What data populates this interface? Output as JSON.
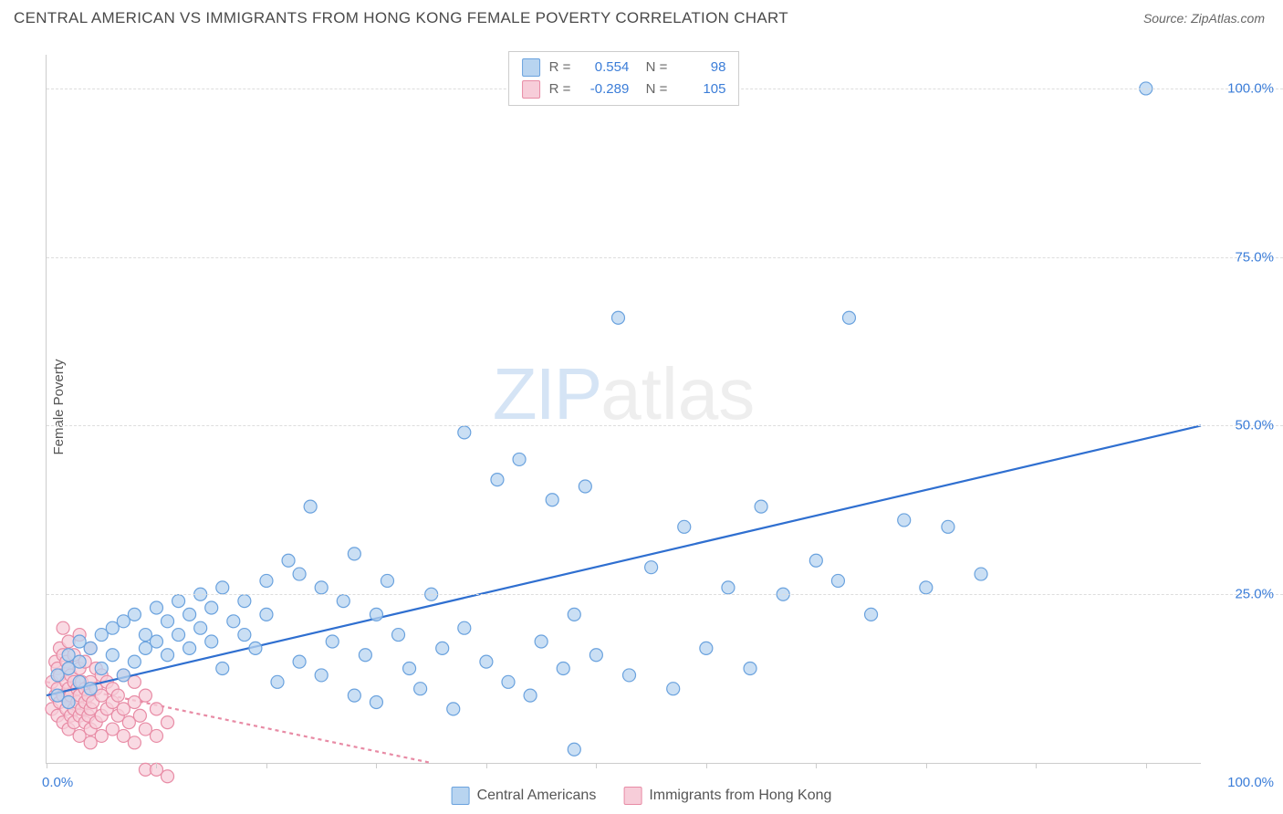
{
  "title": "CENTRAL AMERICAN VS IMMIGRANTS FROM HONG KONG FEMALE POVERTY CORRELATION CHART",
  "source": "Source: ZipAtlas.com",
  "ylabel": "Female Poverty",
  "watermark_zip": "ZIP",
  "watermark_atlas": "atlas",
  "chart": {
    "type": "scatter",
    "background_color": "#ffffff",
    "grid_color": "#dddddd",
    "axis_color": "#cccccc",
    "xlim": [
      0,
      105
    ],
    "ylim": [
      0,
      105
    ],
    "xticks": [
      0,
      10,
      20,
      30,
      40,
      50,
      60,
      70,
      80,
      90,
      100
    ],
    "yticks": [
      25,
      50,
      75,
      100
    ],
    "ytick_labels": [
      "25.0%",
      "50.0%",
      "75.0%",
      "100.0%"
    ],
    "x_axis_labels": {
      "min": "0.0%",
      "max": "100.0%"
    },
    "marker_radius": 7,
    "marker_stroke_width": 1.2,
    "trend_line_width": 2.2
  },
  "series": [
    {
      "name": "Central Americans",
      "fill_color": "#b8d4f0",
      "stroke_color": "#6aa2de",
      "line_color": "#2f6fd0",
      "line_dash": "none",
      "R": "0.554",
      "N": "98",
      "trend": {
        "x1": 0,
        "y1": 10,
        "x2": 105,
        "y2": 50
      },
      "points": [
        [
          1,
          10
        ],
        [
          1,
          13
        ],
        [
          2,
          9
        ],
        [
          2,
          14
        ],
        [
          2,
          16
        ],
        [
          3,
          12
        ],
        [
          3,
          15
        ],
        [
          3,
          18
        ],
        [
          4,
          11
        ],
        [
          4,
          17
        ],
        [
          5,
          14
        ],
        [
          5,
          19
        ],
        [
          6,
          16
        ],
        [
          6,
          20
        ],
        [
          7,
          13
        ],
        [
          7,
          21
        ],
        [
          8,
          15
        ],
        [
          8,
          22
        ],
        [
          9,
          17
        ],
        [
          9,
          19
        ],
        [
          10,
          18
        ],
        [
          10,
          23
        ],
        [
          11,
          16
        ],
        [
          11,
          21
        ],
        [
          12,
          19
        ],
        [
          12,
          24
        ],
        [
          13,
          17
        ],
        [
          13,
          22
        ],
        [
          14,
          20
        ],
        [
          14,
          25
        ],
        [
          15,
          18
        ],
        [
          15,
          23
        ],
        [
          16,
          14
        ],
        [
          16,
          26
        ],
        [
          17,
          21
        ],
        [
          18,
          19
        ],
        [
          18,
          24
        ],
        [
          19,
          17
        ],
        [
          20,
          22
        ],
        [
          20,
          27
        ],
        [
          21,
          12
        ],
        [
          22,
          30
        ],
        [
          23,
          15
        ],
        [
          23,
          28
        ],
        [
          24,
          38
        ],
        [
          25,
          13
        ],
        [
          25,
          26
        ],
        [
          26,
          18
        ],
        [
          27,
          24
        ],
        [
          28,
          10
        ],
        [
          28,
          31
        ],
        [
          29,
          16
        ],
        [
          30,
          9
        ],
        [
          30,
          22
        ],
        [
          31,
          27
        ],
        [
          32,
          19
        ],
        [
          33,
          14
        ],
        [
          34,
          11
        ],
        [
          35,
          25
        ],
        [
          36,
          17
        ],
        [
          37,
          8
        ],
        [
          38,
          49
        ],
        [
          38,
          20
        ],
        [
          40,
          15
        ],
        [
          41,
          42
        ],
        [
          42,
          12
        ],
        [
          43,
          45
        ],
        [
          44,
          10
        ],
        [
          45,
          18
        ],
        [
          46,
          39
        ],
        [
          47,
          14
        ],
        [
          48,
          2
        ],
        [
          48,
          22
        ],
        [
          49,
          41
        ],
        [
          50,
          16
        ],
        [
          52,
          66
        ],
        [
          53,
          13
        ],
        [
          55,
          29
        ],
        [
          57,
          11
        ],
        [
          58,
          35
        ],
        [
          60,
          17
        ],
        [
          62,
          26
        ],
        [
          64,
          14
        ],
        [
          65,
          38
        ],
        [
          67,
          25
        ],
        [
          70,
          30
        ],
        [
          72,
          27
        ],
        [
          73,
          66
        ],
        [
          75,
          22
        ],
        [
          78,
          36
        ],
        [
          80,
          26
        ],
        [
          82,
          35
        ],
        [
          85,
          28
        ],
        [
          100,
          100
        ]
      ]
    },
    {
      "name": "Immigrants from Hong Kong",
      "fill_color": "#f7cdd9",
      "stroke_color": "#e88ba5",
      "line_color": "#e88ba5",
      "line_dash": "4,4",
      "R": "-0.289",
      "N": "105",
      "trend": {
        "x1": 0,
        "y1": 12,
        "x2": 35,
        "y2": 0
      },
      "points": [
        [
          0.5,
          8
        ],
        [
          0.5,
          12
        ],
        [
          0.8,
          10
        ],
        [
          0.8,
          15
        ],
        [
          1,
          7
        ],
        [
          1,
          11
        ],
        [
          1,
          14
        ],
        [
          1.2,
          9
        ],
        [
          1.2,
          13
        ],
        [
          1.2,
          17
        ],
        [
          1.5,
          6
        ],
        [
          1.5,
          10
        ],
        [
          1.5,
          16
        ],
        [
          1.5,
          20
        ],
        [
          1.8,
          8
        ],
        [
          1.8,
          12
        ],
        [
          1.8,
          15
        ],
        [
          2,
          5
        ],
        [
          2,
          9
        ],
        [
          2,
          11
        ],
        [
          2,
          14
        ],
        [
          2,
          18
        ],
        [
          2.2,
          7
        ],
        [
          2.2,
          10
        ],
        [
          2.2,
          13
        ],
        [
          2.5,
          6
        ],
        [
          2.5,
          8
        ],
        [
          2.5,
          12
        ],
        [
          2.5,
          16
        ],
        [
          2.8,
          9
        ],
        [
          2.8,
          11
        ],
        [
          3,
          4
        ],
        [
          3,
          7
        ],
        [
          3,
          10
        ],
        [
          3,
          14
        ],
        [
          3,
          19
        ],
        [
          3.2,
          8
        ],
        [
          3.2,
          12
        ],
        [
          3.5,
          6
        ],
        [
          3.5,
          9
        ],
        [
          3.5,
          11
        ],
        [
          3.5,
          15
        ],
        [
          3.8,
          7
        ],
        [
          3.8,
          10
        ],
        [
          4,
          3
        ],
        [
          4,
          5
        ],
        [
          4,
          8
        ],
        [
          4,
          12
        ],
        [
          4,
          17
        ],
        [
          4.2,
          9
        ],
        [
          4.5,
          6
        ],
        [
          4.5,
          11
        ],
        [
          4.5,
          14
        ],
        [
          5,
          4
        ],
        [
          5,
          7
        ],
        [
          5,
          10
        ],
        [
          5,
          13
        ],
        [
          5.5,
          8
        ],
        [
          5.5,
          12
        ],
        [
          6,
          5
        ],
        [
          6,
          9
        ],
        [
          6,
          11
        ],
        [
          6.5,
          7
        ],
        [
          6.5,
          10
        ],
        [
          7,
          4
        ],
        [
          7,
          8
        ],
        [
          7,
          13
        ],
        [
          7.5,
          6
        ],
        [
          8,
          3
        ],
        [
          8,
          9
        ],
        [
          8,
          12
        ],
        [
          8.5,
          7
        ],
        [
          9,
          5
        ],
        [
          9,
          10
        ],
        [
          9,
          -1
        ],
        [
          10,
          4
        ],
        [
          10,
          8
        ],
        [
          10,
          -1
        ],
        [
          11,
          6
        ],
        [
          11,
          -2
        ]
      ]
    }
  ],
  "legend_bottom": [
    {
      "label": "Central Americans",
      "fill": "#b8d4f0",
      "stroke": "#6aa2de"
    },
    {
      "label": "Immigrants from Hong Kong",
      "fill": "#f7cdd9",
      "stroke": "#e88ba5"
    }
  ]
}
